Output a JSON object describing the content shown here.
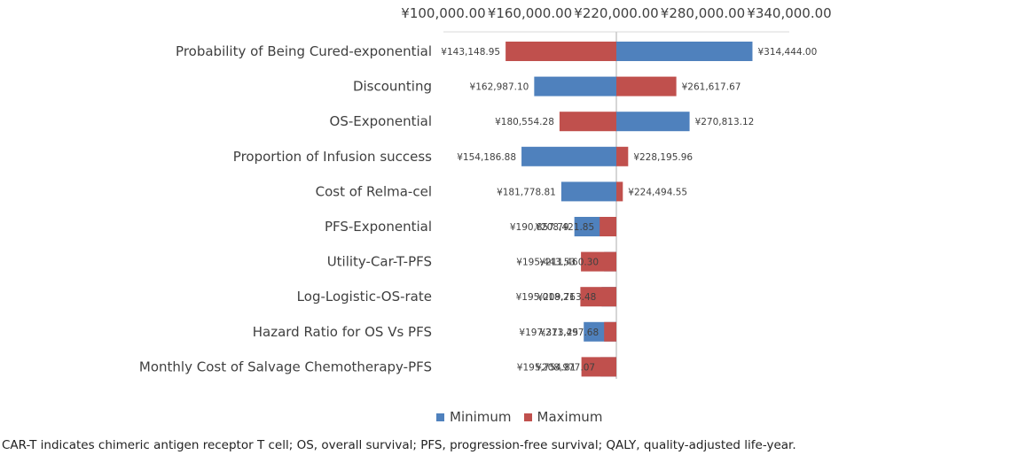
{
  "chart_data": {
    "type": "tornado",
    "baseline": 220000,
    "xlim": [
      100000,
      340000
    ],
    "xticks": [
      100000,
      160000,
      220000,
      280000,
      340000
    ],
    "xtick_labels": [
      "¥100,000.00",
      "¥160,000.00",
      "¥220,000.00",
      "¥280,000.00",
      "¥340,000.00"
    ],
    "axis_position": "top",
    "categories": [
      "Probability of Being Cured-exponential",
      "Discounting",
      "OS-Exponential",
      "Proportion of Infusion success",
      "Cost of Relma-cel",
      "PFS-Exponential",
      "Utility-Car-T-PFS",
      "Log-Logistic-OS-rate",
      "Hazard Ratio for OS Vs PFS",
      "Monthly Cost of Salvage Chemotherapy-PFS"
    ],
    "series": [
      {
        "name": "Minimum",
        "color": "#4f81bd",
        "values": [
          314444.0,
          162987.1,
          270813.12,
          154186.88,
          181778.81,
          190857.79,
          211460.3,
          209763.48,
          197373.25,
          208977.07
        ],
        "labels": [
          "¥314,444.00",
          "¥162,987.10",
          "¥270,813.12",
          "¥154,186.88",
          "¥181,778.81",
          "¥190,857.79",
          "¥211,460.30",
          "¥209,763.48",
          "¥197,373.25",
          "¥208,977.07"
        ]
      },
      {
        "name": "Maximum",
        "color": "#c0504d",
        "values": [
          143148.95,
          261617.67,
          180554.28,
          228195.96,
          224494.55,
          208421.85,
          195443.53,
          195018.21,
          211497.68,
          195754.81
        ],
        "labels": [
          "¥143,148.95",
          "¥261,617.67",
          "¥180,554.28",
          "¥228,195.96",
          "¥224,494.55",
          "¥208,421.85",
          "¥195,443.53",
          "¥195,018.21",
          "¥211,497.68",
          "¥195,754.81"
        ]
      }
    ],
    "legend_position": "bottom"
  },
  "caption": "CAR-T indicates chimeric antigen receptor T cell; OS, overall survival; PFS, progression-free survival; QALY, quality-adjusted life-year."
}
